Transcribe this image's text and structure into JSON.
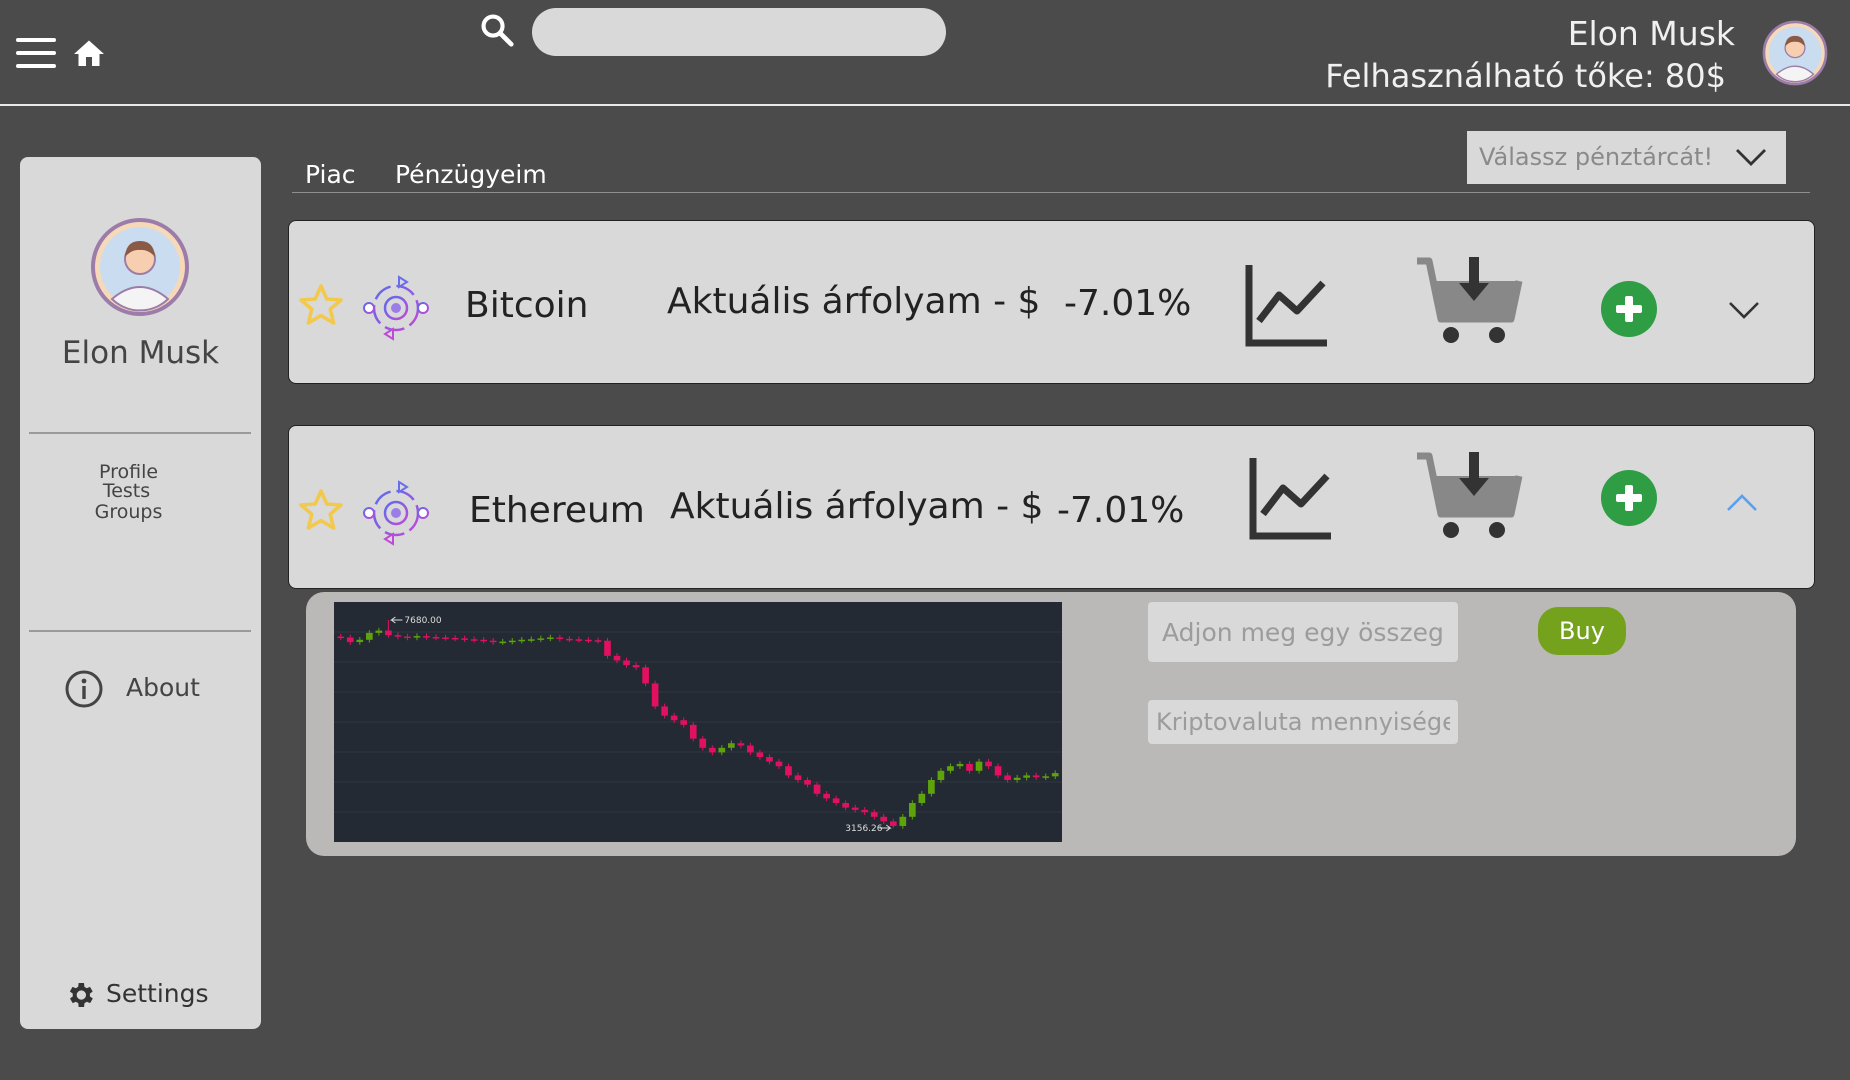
{
  "header": {
    "user_name": "Elon Musk",
    "balance": "Felhasználható tőke: 80$",
    "search": {
      "value": "",
      "placeholder": ""
    }
  },
  "sidebar": {
    "user_name": "Elon Musk",
    "links": [
      "Profile",
      "Tests",
      "Groups"
    ],
    "about_label": "About",
    "settings_label": "Settings"
  },
  "tabs": [
    {
      "label": "Piac"
    },
    {
      "label": "Pénzügyeim"
    }
  ],
  "wallet_select": {
    "placeholder": "Válassz pénztárcát!",
    "icon": "chevron-down-icon"
  },
  "coins": [
    {
      "name": "Bitcoin",
      "rate_label": "Aktuális árfolyam - $",
      "change": "-7.01%",
      "expanded": false
    },
    {
      "name": "Ethereum",
      "rate_label": "Aktuális árfolyam - $",
      "change": "-7.01%",
      "expanded": true
    }
  ],
  "purchase": {
    "amount_placeholder": "Adjon meg egy összeget",
    "crypto_placeholder": "Kriptovaluta mennyisége",
    "buy_label": "Buy"
  },
  "chart_data": {
    "type": "candlestick",
    "high_label": "7680.00",
    "low_label": "3156.26",
    "colors": {
      "up": "#5fa30c",
      "down": "#e0115f",
      "background": "#232a33"
    },
    "closes": [
      7300,
      7200,
      7250,
      7400,
      7450,
      7350,
      7320,
      7300,
      7330,
      7310,
      7300,
      7290,
      7280,
      7260,
      7250,
      7230,
      7200,
      7210,
      7230,
      7250,
      7260,
      7280,
      7300,
      7270,
      7260,
      7250,
      7240,
      7230,
      6900,
      6800,
      6700,
      6650,
      6300,
      5800,
      5600,
      5500,
      5400,
      5100,
      4900,
      4800,
      4900,
      5000,
      4950,
      4800,
      4700,
      4600,
      4500,
      4300,
      4200,
      4100,
      3900,
      3800,
      3700,
      3600,
      3550,
      3500,
      3400,
      3300,
      3200,
      3400,
      3700,
      3900,
      4200,
      4400,
      4500,
      4550,
      4400,
      4600,
      4500,
      4300,
      4200,
      4250,
      4300,
      4260,
      4280,
      4350
    ]
  },
  "colors": {
    "background": "#4b4b4b",
    "panel": "#d9d9d9",
    "plus_green": "#2e9d44",
    "buy_green": "#74a21c",
    "star": "#f2c94c",
    "coin_logo": "#7b61e8",
    "active_chevron": "#5aa0f0"
  }
}
